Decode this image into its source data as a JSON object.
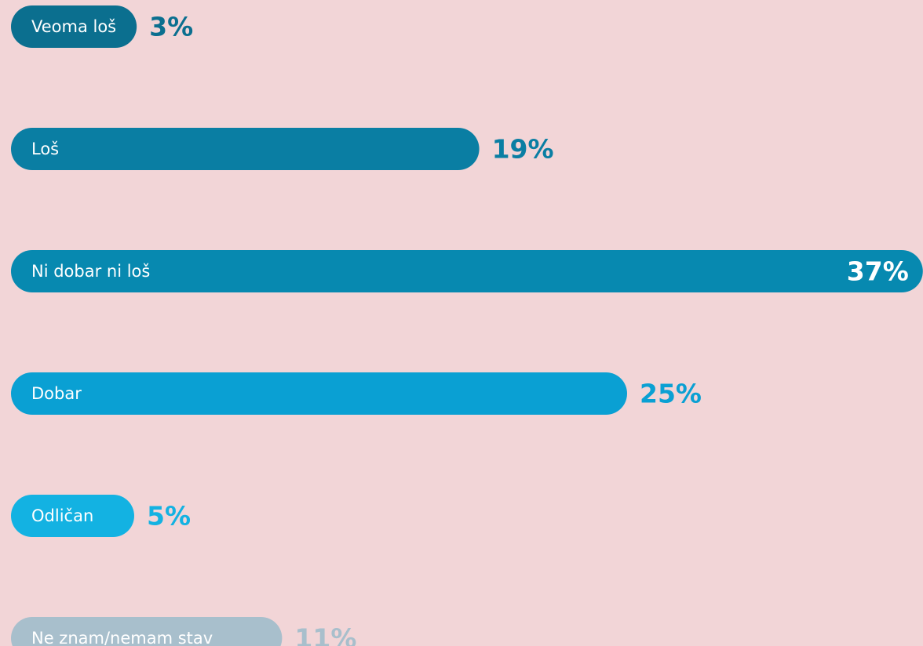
{
  "chart_data": {
    "type": "bar",
    "orientation": "horizontal",
    "categories": [
      "Veoma loš",
      "Loš",
      "Ni dobar ni loš",
      "Dobar",
      "Odličan",
      "Ne znam/nemam stav"
    ],
    "values": [
      3,
      19,
      37,
      25,
      5,
      11
    ],
    "value_labels": [
      "3%",
      "19%",
      "37%",
      "25%",
      "5%",
      "11%"
    ],
    "colors": [
      "#0b6f8f",
      "#0a7ea3",
      "#0789b0",
      "#0aa0d3",
      "#13b2e2",
      "#a8bfcc"
    ]
  }
}
